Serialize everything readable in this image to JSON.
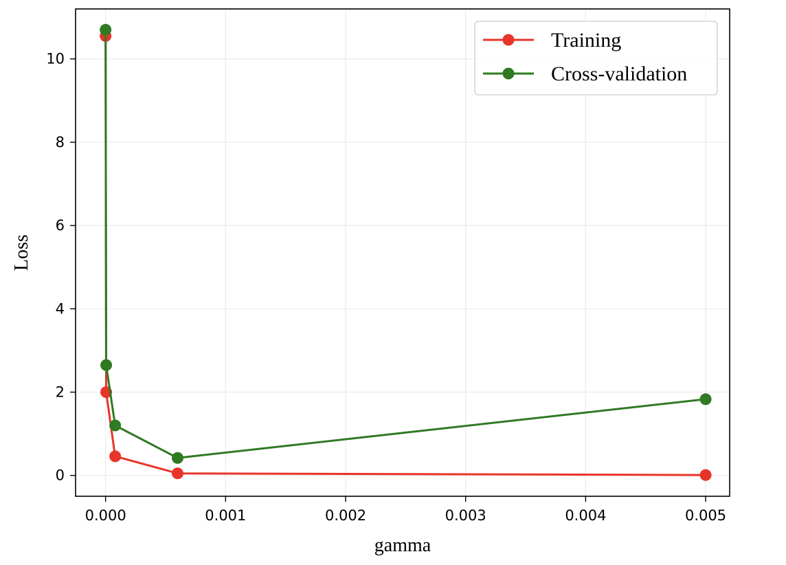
{
  "chart_data": {
    "type": "line",
    "xlabel": "gamma",
    "ylabel": "Loss",
    "xlim": [
      -0.00025,
      0.0052
    ],
    "ylim": [
      -0.5,
      11.2
    ],
    "x_ticks": [
      0.0,
      0.001,
      0.002,
      0.003,
      0.004,
      0.005
    ],
    "x_tick_labels": [
      "0.000",
      "0.001",
      "0.002",
      "0.003",
      "0.004",
      "0.005"
    ],
    "y_ticks": [
      0,
      2,
      4,
      6,
      8,
      10
    ],
    "y_tick_labels": [
      "0",
      "2",
      "4",
      "6",
      "8",
      "10"
    ],
    "grid": true,
    "legend_position": "top-right",
    "series": [
      {
        "name": "Training",
        "color": "#e8352a",
        "x": [
          1e-07,
          5e-06,
          8e-05,
          0.0006,
          0.005
        ],
        "y": [
          10.55,
          2.0,
          0.46,
          0.05,
          0.01
        ]
      },
      {
        "name": "Cross-validation",
        "color": "#2f7a22",
        "x": [
          1e-07,
          5e-06,
          8e-05,
          0.0006,
          0.005
        ],
        "y": [
          10.7,
          2.65,
          1.2,
          0.42,
          1.83
        ]
      }
    ]
  }
}
